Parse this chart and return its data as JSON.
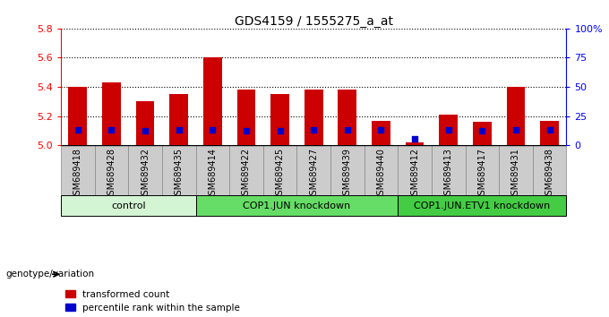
{
  "title": "GDS4159 / 1555275_a_at",
  "samples": [
    "GSM689418",
    "GSM689428",
    "GSM689432",
    "GSM689435",
    "GSM689414",
    "GSM689422",
    "GSM689425",
    "GSM689427",
    "GSM689439",
    "GSM689440",
    "GSM689412",
    "GSM689413",
    "GSM689417",
    "GSM689431",
    "GSM689438"
  ],
  "transformed_count": [
    5.4,
    5.43,
    5.3,
    5.35,
    5.6,
    5.38,
    5.35,
    5.38,
    5.38,
    5.17,
    5.02,
    5.21,
    5.16,
    5.4,
    5.17
  ],
  "percentile_rank": [
    0.135,
    0.135,
    0.125,
    0.135,
    0.135,
    0.125,
    0.125,
    0.135,
    0.135,
    0.135,
    0.06,
    0.135,
    0.125,
    0.135,
    0.135
  ],
  "groups": [
    {
      "label": "control",
      "start": 0,
      "end": 4,
      "color": "#d4f5d4"
    },
    {
      "label": "COP1.JUN knockdown",
      "start": 4,
      "end": 10,
      "color": "#66dd66"
    },
    {
      "label": "COP1.JUN.ETV1 knockdown",
      "start": 10,
      "end": 15,
      "color": "#44cc44"
    }
  ],
  "bar_color": "#cc0000",
  "percentile_color": "#0000cc",
  "ymin": 5.0,
  "ymax": 5.8,
  "yticks": [
    5.0,
    5.2,
    5.4,
    5.6,
    5.8
  ],
  "right_yticks": [
    0,
    25,
    50,
    75,
    100
  ],
  "right_ytick_labels": [
    "0",
    "25",
    "50",
    "75",
    "100%"
  ],
  "bar_width": 0.55,
  "title_fontsize": 10,
  "background_color": "#ffffff",
  "tick_label_bg": "#cccccc",
  "label_fontsize": 7,
  "group_fontsize": 8
}
